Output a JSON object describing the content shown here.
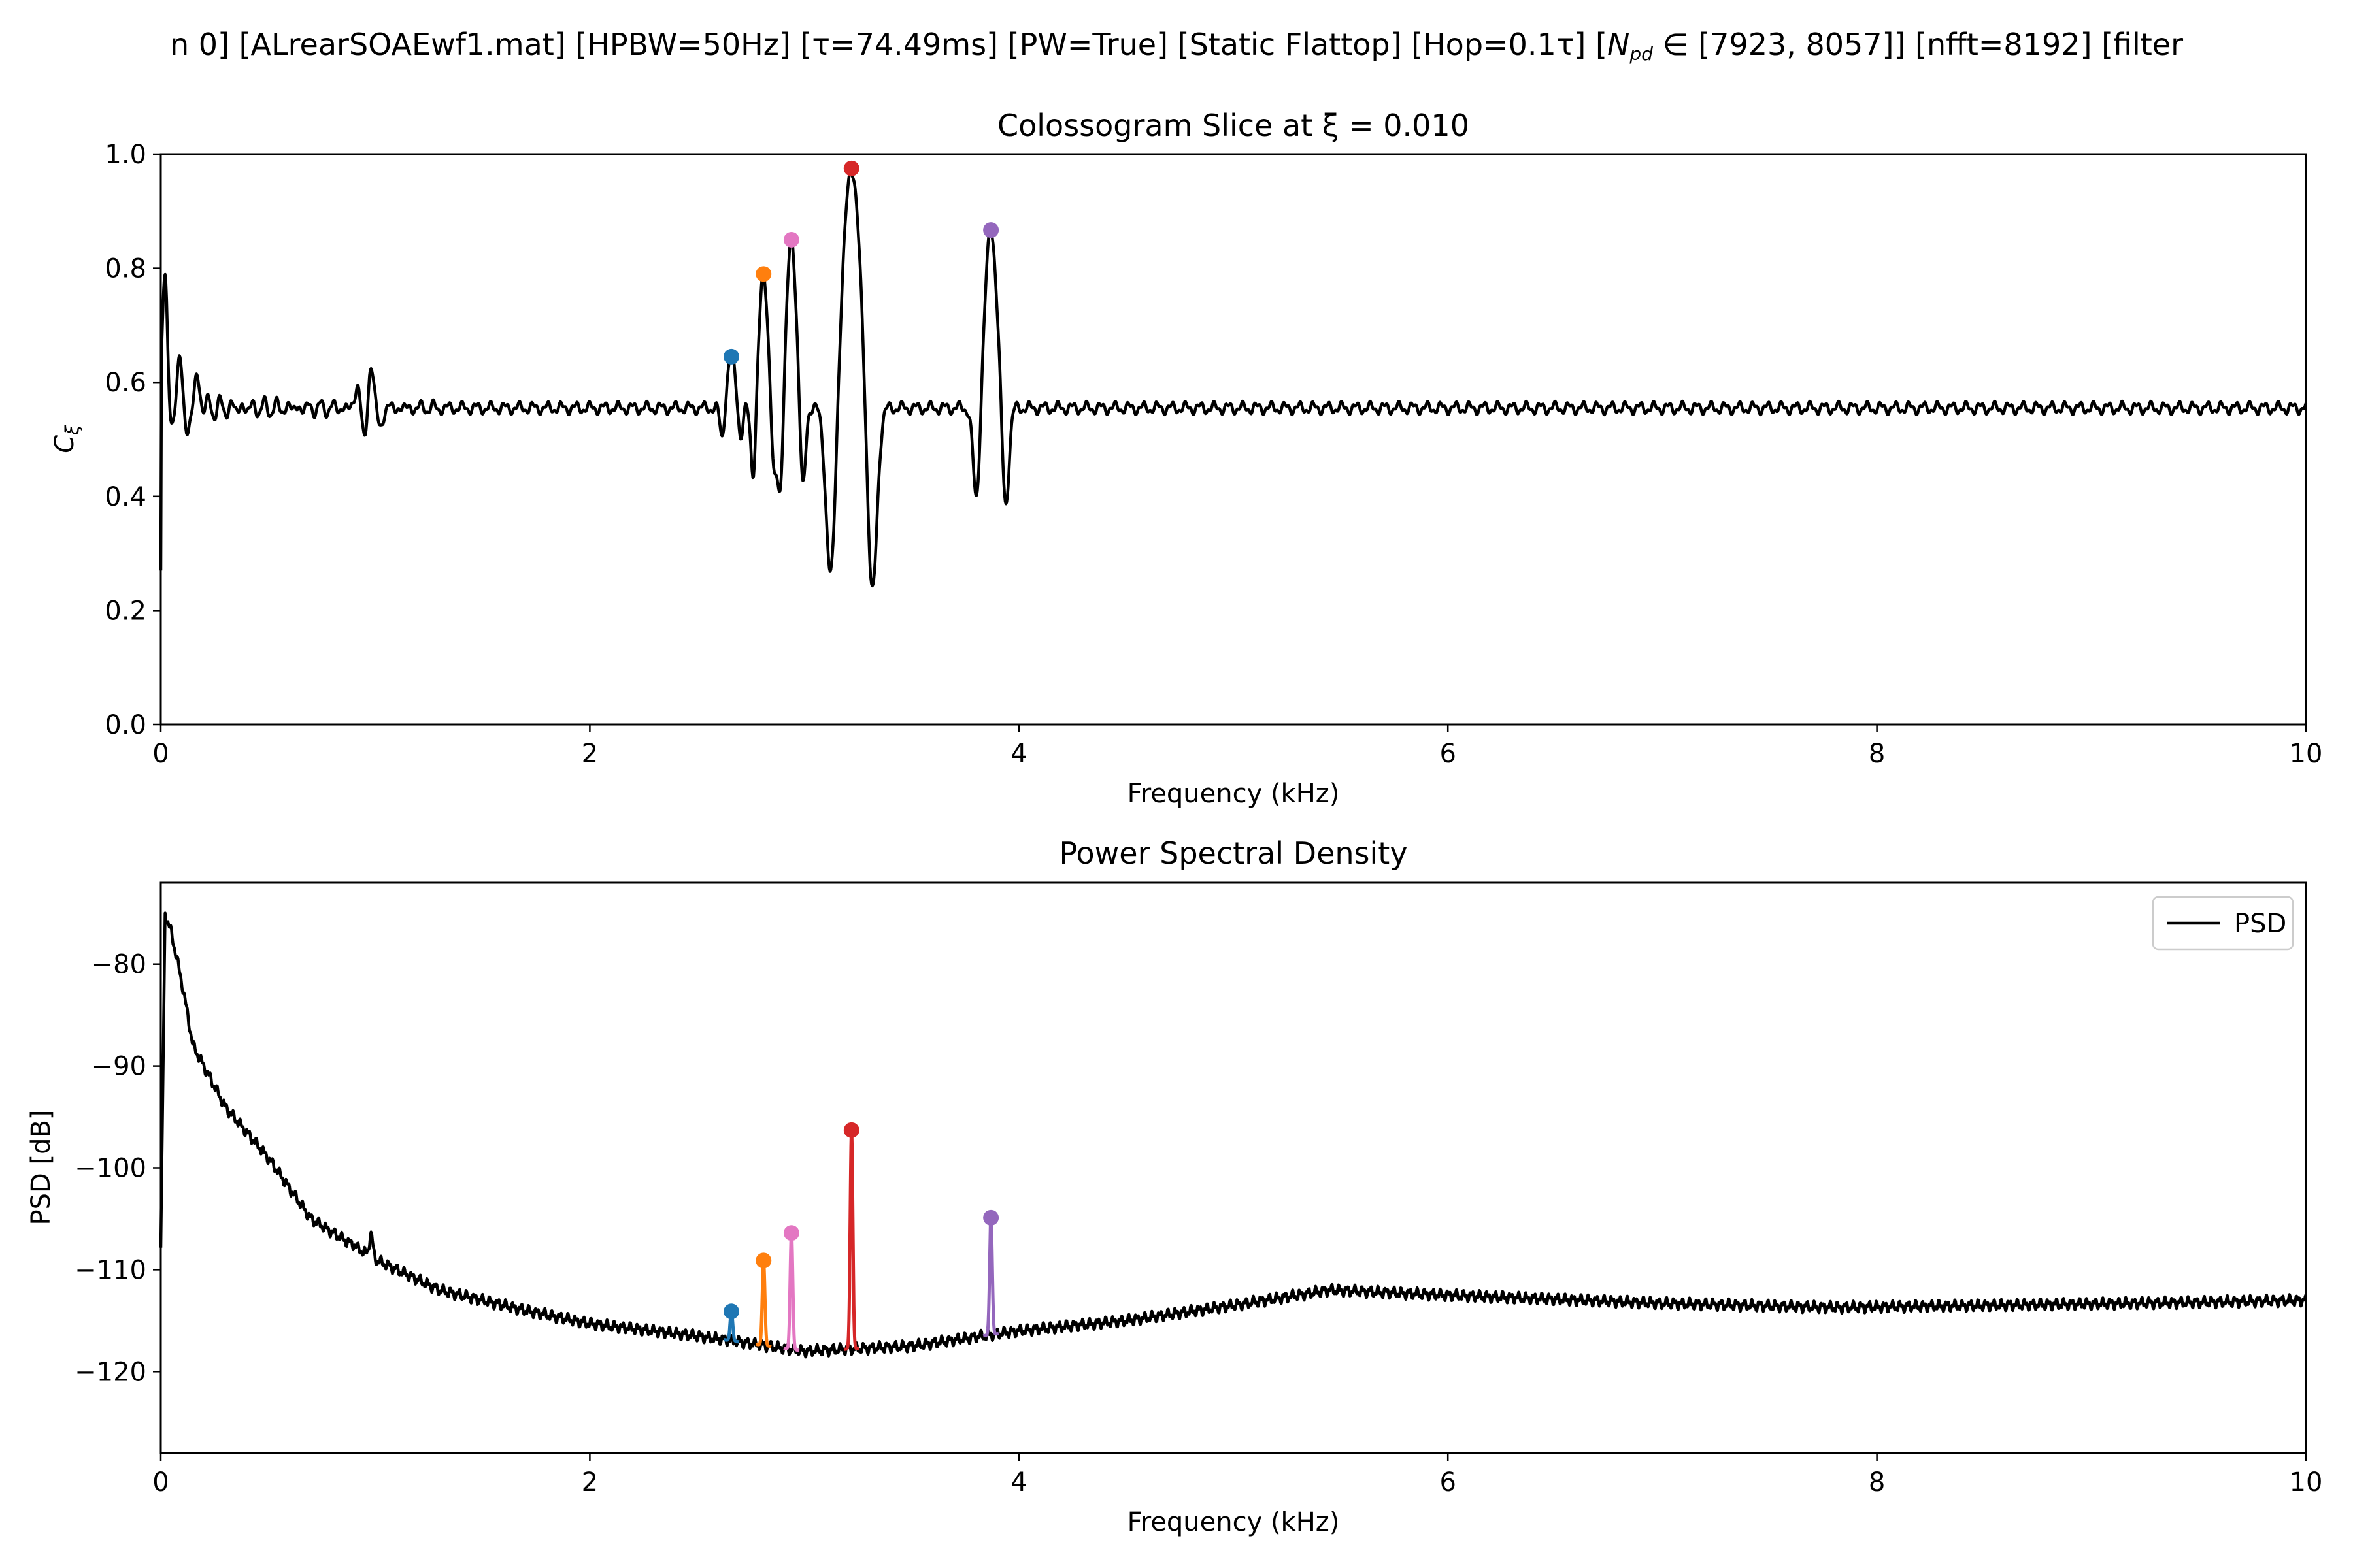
{
  "figure": {
    "suptitle": "n 0]   [ALrearSOAEwf1.mat]   [HPBW=50Hz]   [τ=74.49ms]   [PW=True]   [Static Flattop]   [Hop=0.1τ]   [N_pd ∈ [7923, 8057]]   [nfft=8192]   [filter"
  },
  "chart_data": [
    {
      "type": "line",
      "title": "Colossogram Slice at ξ = 0.010",
      "xlabel": "Frequency (kHz)",
      "ylabel": "Cξ",
      "xlim": [
        0,
        10
      ],
      "ylim": [
        0,
        1.0
      ],
      "xticks": [
        0,
        2,
        4,
        6,
        8,
        10
      ],
      "xtick_labels": [
        "0",
        "2",
        "4",
        "6",
        "8",
        "10"
      ],
      "yticks": [
        0,
        0.2,
        0.4,
        0.6,
        0.8,
        1.0
      ],
      "ytick_labels": [
        "0.0",
        "0.2",
        "0.4",
        "0.6",
        "0.8",
        "1.0"
      ],
      "grid": false,
      "line_color": "#000000",
      "baseline": 0.555,
      "ripple_amplitude": 0.008,
      "low_freq_features": [
        {
          "x": 0.02,
          "y": 0.77,
          "w": 0.012
        },
        {
          "x": 0.06,
          "y": 0.52,
          "w": 0.012
        },
        {
          "x": 0.09,
          "y": 0.66,
          "w": 0.012
        },
        {
          "x": 0.12,
          "y": 0.5,
          "w": 0.012
        },
        {
          "x": 0.17,
          "y": 0.6,
          "w": 0.015
        },
        {
          "x": 0.92,
          "y": 0.6,
          "w": 0.012
        },
        {
          "x": 0.95,
          "y": 0.49,
          "w": 0.012
        },
        {
          "x": 0.98,
          "y": 0.64,
          "w": 0.012
        },
        {
          "x": 1.02,
          "y": 0.52,
          "w": 0.012
        }
      ],
      "peaks": [
        {
          "x": 2.66,
          "y": 0.645,
          "dip_left": 0.5,
          "dip_right": 0.5,
          "w": 0.018,
          "color": "#1f77b4"
        },
        {
          "x": 2.81,
          "y": 0.79,
          "dip_left": 0.43,
          "dip_right": 0.43,
          "w": 0.02,
          "color": "#ff7f0e"
        },
        {
          "x": 2.94,
          "y": 0.85,
          "dip_left": 0.4,
          "dip_right": 0.4,
          "w": 0.022,
          "color": "#e377c2"
        },
        {
          "x": 3.22,
          "y": 0.975,
          "dip_left": 0.24,
          "dip_right": 0.21,
          "w": 0.04,
          "color": "#d62728"
        },
        {
          "x": 3.87,
          "y": 0.867,
          "dip_left": 0.38,
          "dip_right": 0.37,
          "w": 0.028,
          "color": "#9467bd"
        }
      ]
    },
    {
      "type": "line",
      "title": "Power Spectral Density",
      "xlabel": "Frequency (kHz)",
      "ylabel": "PSD [dB]",
      "xlim": [
        0,
        10
      ],
      "ylim": [
        -128,
        -72
      ],
      "xticks": [
        0,
        2,
        4,
        6,
        8,
        10
      ],
      "xtick_labels": [
        "0",
        "2",
        "4",
        "6",
        "8",
        "10"
      ],
      "yticks": [
        -120,
        -110,
        -100,
        -90,
        -80
      ],
      "ytick_labels": [
        "−120",
        "−110",
        "−100",
        "−90",
        "−80"
      ],
      "grid": false,
      "legend": {
        "position": "top-right",
        "entries": [
          {
            "label": "PSD",
            "color": "#000000"
          }
        ]
      },
      "baseline_curve": [
        {
          "x": 0.0,
          "y": -108
        },
        {
          "x": 0.02,
          "y": -75
        },
        {
          "x": 0.05,
          "y": -77
        },
        {
          "x": 0.1,
          "y": -82
        },
        {
          "x": 0.15,
          "y": -88
        },
        {
          "x": 0.3,
          "y": -94
        },
        {
          "x": 0.5,
          "y": -99
        },
        {
          "x": 0.7,
          "y": -105
        },
        {
          "x": 1.0,
          "y": -109
        },
        {
          "x": 1.3,
          "y": -112
        },
        {
          "x": 1.7,
          "y": -114
        },
        {
          "x": 2.0,
          "y": -115.3
        },
        {
          "x": 2.5,
          "y": -116.5
        },
        {
          "x": 3.0,
          "y": -118
        },
        {
          "x": 3.5,
          "y": -117.5
        },
        {
          "x": 4.0,
          "y": -116
        },
        {
          "x": 4.5,
          "y": -115
        },
        {
          "x": 5.0,
          "y": -113.5
        },
        {
          "x": 5.45,
          "y": -112
        },
        {
          "x": 6.0,
          "y": -112.5
        },
        {
          "x": 7.0,
          "y": -113.3
        },
        {
          "x": 7.8,
          "y": -113.7
        },
        {
          "x": 8.5,
          "y": -113.5
        },
        {
          "x": 9.5,
          "y": -113.2
        },
        {
          "x": 10.0,
          "y": -113
        }
      ],
      "small_peaks": [
        {
          "x": 0.9,
          "y": -107.5
        },
        {
          "x": 0.98,
          "y": -106.5
        },
        {
          "x": 1.15,
          "y": -110.5
        }
      ],
      "peaks": [
        {
          "x": 2.66,
          "y": -114.1,
          "color": "#1f77b4"
        },
        {
          "x": 2.81,
          "y": -109.1,
          "color": "#ff7f0e"
        },
        {
          "x": 2.94,
          "y": -106.4,
          "color": "#e377c2"
        },
        {
          "x": 3.22,
          "y": -96.3,
          "color": "#d62728"
        },
        {
          "x": 3.87,
          "y": -104.9,
          "color": "#9467bd"
        }
      ]
    }
  ]
}
